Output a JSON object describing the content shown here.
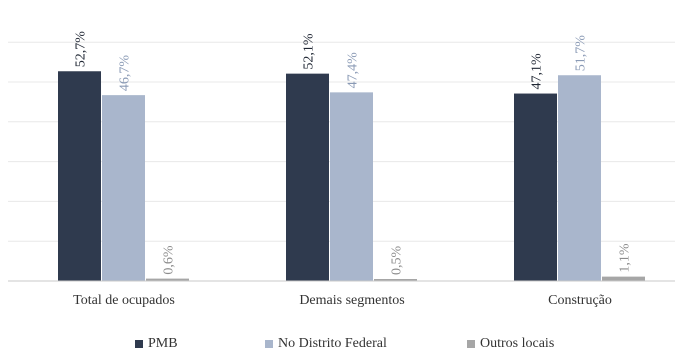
{
  "chart_data": {
    "type": "bar",
    "categories": [
      "Total de ocupados",
      "Demais segmentos",
      "Construção"
    ],
    "series": [
      {
        "name": "PMB",
        "color": "#2f3a4e",
        "values": [
          52.7,
          52.1,
          47.1
        ],
        "labels": [
          "52,7%",
          "52,1%",
          "47,1%"
        ]
      },
      {
        "name": "No Distrito Federal",
        "color": "#a9b6cc",
        "values": [
          46.7,
          47.4,
          51.7
        ],
        "labels": [
          "46,7%",
          "47,4%",
          "51,7%"
        ]
      },
      {
        "name": "Outros locais",
        "color": "#a6a6a6",
        "values": [
          0.6,
          0.5,
          1.1
        ],
        "labels": [
          "0,6%",
          "0,5%",
          "1,1%"
        ]
      }
    ],
    "ylim": [
      0,
      60
    ],
    "grid": true,
    "legend": "bottom"
  }
}
